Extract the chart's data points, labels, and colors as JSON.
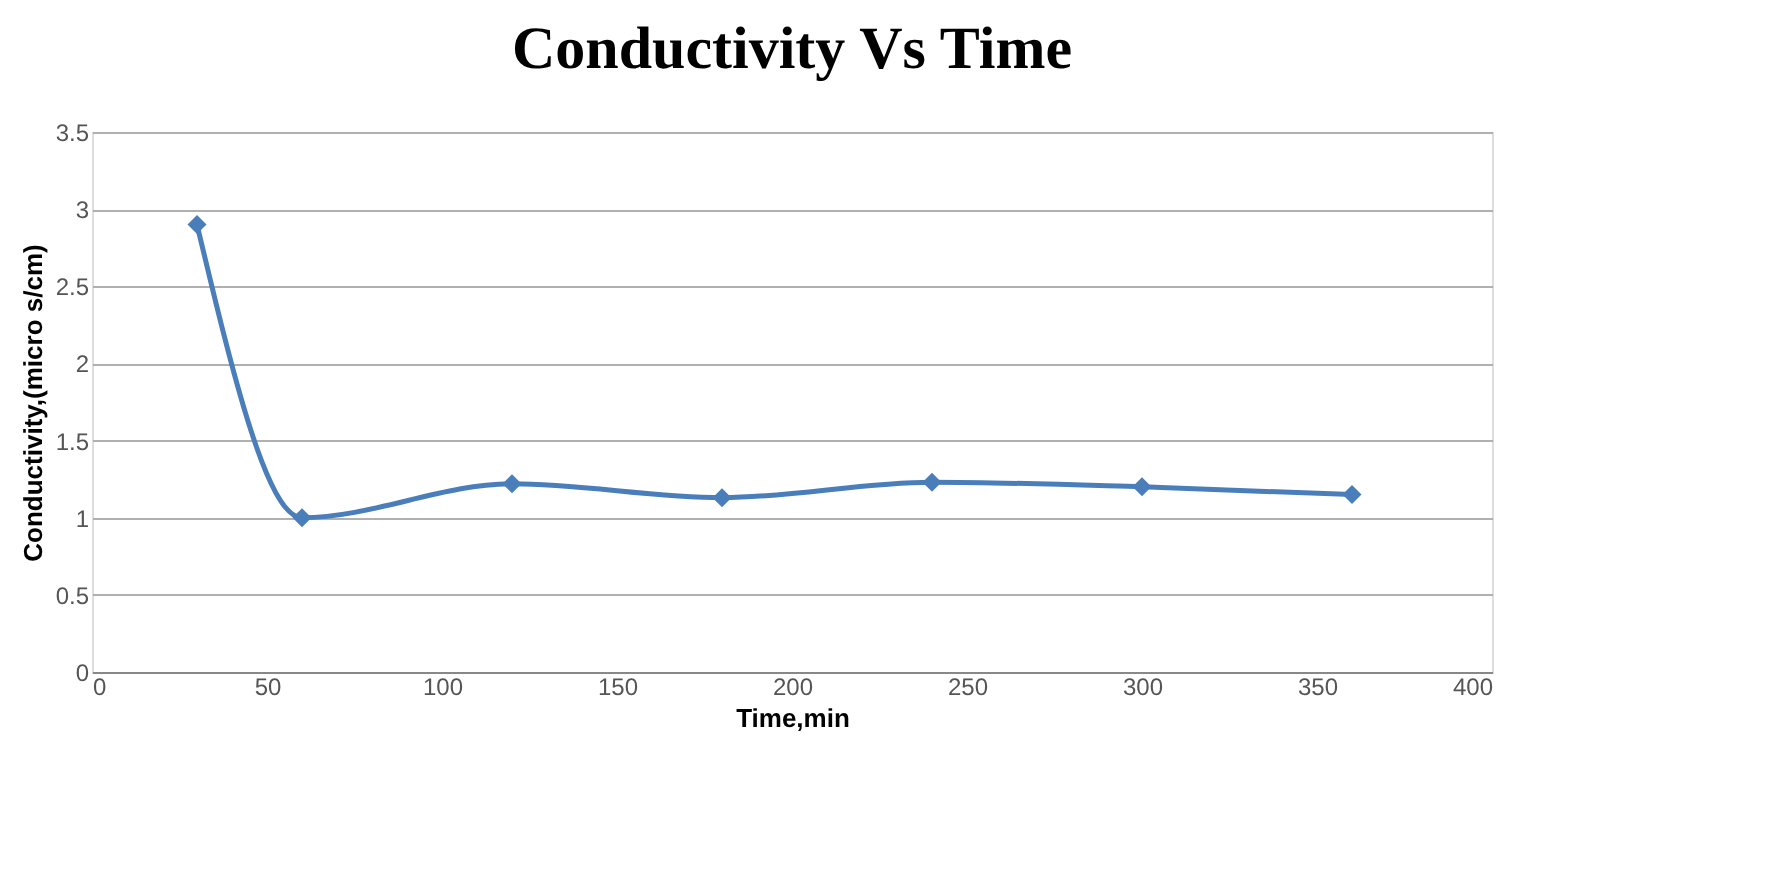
{
  "chart_data": {
    "type": "line",
    "title": "Conductivity Vs Time",
    "xlabel": "Time,min",
    "ylabel": "Conductivity,(micro s/cm)",
    "x": [
      30,
      60,
      120,
      180,
      240,
      300,
      360
    ],
    "series": [
      {
        "color": "#4a7ebb",
        "values": [
          2.9,
          1.0,
          1.22,
          1.13,
          1.23,
          1.2,
          1.15
        ]
      }
    ],
    "xlim": [
      0,
      400
    ],
    "xticks": [
      0,
      50,
      100,
      150,
      200,
      250,
      300,
      350,
      400
    ],
    "ylim": [
      0,
      3.5
    ],
    "yticks": [
      0,
      0.5,
      1,
      1.5,
      2,
      2.5,
      3,
      3.5
    ],
    "grid": "y",
    "legend": false,
    "marker": "diamond",
    "line_style": "solid"
  }
}
